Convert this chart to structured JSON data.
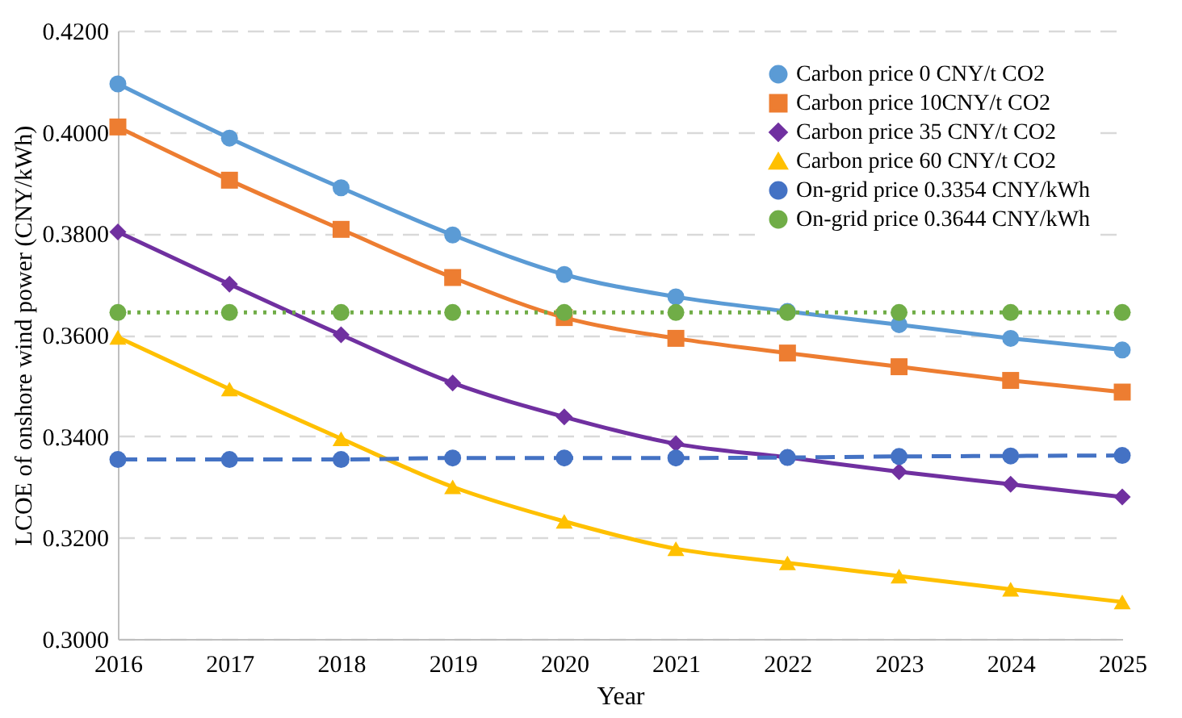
{
  "chart_data": {
    "type": "line",
    "xlabel": "Year",
    "ylabel": "LCOE of onshore wind power (CNY/kWh)",
    "categories": [
      "2016",
      "2017",
      "2018",
      "2019",
      "2020",
      "2021",
      "2022",
      "2023",
      "2024",
      "2025"
    ],
    "series": [
      {
        "name": "Carbon price 0 CNY/t CO2",
        "color": "#5b9bd5",
        "marker": "circle",
        "line_style": "solid",
        "values": [
          0.4095,
          0.3988,
          0.389,
          0.3797,
          0.3719,
          0.3675,
          0.3646,
          0.362,
          0.3593,
          0.357
        ]
      },
      {
        "name": "Carbon price 10CNY/t CO2",
        "color": "#ed7d31",
        "marker": "square",
        "line_style": "solid",
        "values": [
          0.401,
          0.3905,
          0.3808,
          0.3713,
          0.3634,
          0.3593,
          0.3564,
          0.3537,
          0.351,
          0.3487
        ]
      },
      {
        "name": "Carbon price 35 CNY/t CO2",
        "color": "#7030a0",
        "marker": "diamond",
        "line_style": "solid",
        "values": [
          0.3803,
          0.37,
          0.36,
          0.3505,
          0.3438,
          0.3385,
          0.3358,
          0.333,
          0.3305,
          0.328
        ]
      },
      {
        "name": "Carbon price 60 CNY/t CO2",
        "color": "#ffc000",
        "marker": "triangle",
        "line_style": "solid",
        "values": [
          0.3595,
          0.3493,
          0.3395,
          0.33,
          0.3232,
          0.3178,
          0.315,
          0.3124,
          0.3098,
          0.3073
        ]
      },
      {
        "name": "On-grid price 0.3354 CNY/kWh",
        "color": "#4472c4",
        "marker": "circle",
        "line_style": "dashed",
        "values": [
          0.3354,
          0.3354,
          0.3354,
          0.3357,
          0.3357,
          0.3357,
          0.3358,
          0.336,
          0.3361,
          0.3362
        ]
      },
      {
        "name": "On-grid price 0.3644 CNY/kWh",
        "color": "#70ad47",
        "marker": "circle",
        "line_style": "dotted",
        "values": [
          0.3644,
          0.3644,
          0.3644,
          0.3644,
          0.3644,
          0.3644,
          0.3644,
          0.3644,
          0.3644,
          0.3644
        ]
      }
    ],
    "ylim": [
      0.3,
      0.42
    ],
    "yticks": [
      {
        "value": 0.3,
        "label": "0.3000"
      },
      {
        "value": 0.32,
        "label": "0.3200"
      },
      {
        "value": 0.34,
        "label": "0.3400"
      },
      {
        "value": 0.36,
        "label": "0.3600"
      },
      {
        "value": 0.38,
        "label": "0.3800"
      },
      {
        "value": 0.4,
        "label": "0.4000"
      },
      {
        "value": 0.42,
        "label": "0.4200"
      }
    ],
    "grid": "y",
    "legend": "top right"
  }
}
